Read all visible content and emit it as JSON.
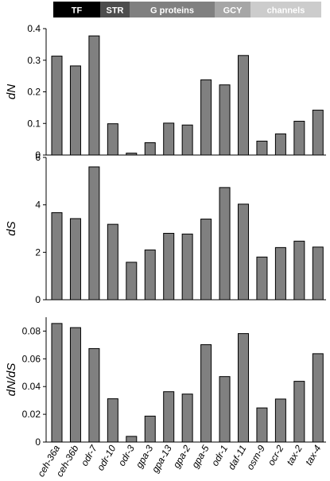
{
  "legend": [
    {
      "label": "TF",
      "color": "#000000"
    },
    {
      "label": "STR",
      "color": "#4d4d4d"
    },
    {
      "label": "G proteins",
      "color": "#808080"
    },
    {
      "label": "GCY",
      "color": "#a6a6a6"
    },
    {
      "label": "channels",
      "color": "#cccccc"
    }
  ],
  "colors": {
    "bar": "#808080",
    "bar_stroke": "#000000",
    "axis": "#000000"
  },
  "chart_data": [
    {
      "type": "bar",
      "ylabel": "dN",
      "ylim": [
        0,
        0.4
      ],
      "yticks": [
        "0",
        "0.1",
        "0.2",
        "0.3",
        "0.4"
      ],
      "ytick_values": [
        0,
        0.1,
        0.2,
        0.3,
        0.4
      ],
      "categories": [
        "ceh-36a",
        "ceh-36b",
        "odr-7",
        "odr-10",
        "odr-3",
        "gpa-3",
        "gpa-13",
        "gpa-2",
        "gpa-5",
        "odr-1",
        "daf-11",
        "osm-9",
        "ocr-2",
        "tax-2",
        "tax-4"
      ],
      "values": [
        0.313,
        0.282,
        0.377,
        0.099,
        0.006,
        0.039,
        0.101,
        0.095,
        0.238,
        0.222,
        0.315,
        0.044,
        0.067,
        0.107,
        0.142
      ]
    },
    {
      "type": "bar",
      "ylabel": "dS",
      "ylim": [
        0,
        6
      ],
      "yticks": [
        "0",
        "2",
        "4",
        "6"
      ],
      "ytick_values": [
        0,
        2,
        4,
        6
      ],
      "categories": [
        "ceh-36a",
        "ceh-36b",
        "odr-7",
        "odr-10",
        "odr-3",
        "gpa-3",
        "gpa-13",
        "gpa-2",
        "gpa-5",
        "odr-1",
        "daf-11",
        "osm-9",
        "ocr-2",
        "tax-2",
        "tax-4"
      ],
      "values": [
        3.67,
        3.42,
        5.6,
        3.18,
        1.58,
        2.1,
        2.8,
        2.77,
        3.4,
        4.73,
        4.03,
        1.8,
        2.2,
        2.47,
        2.22
      ]
    },
    {
      "type": "bar",
      "ylabel": "dN/dS",
      "ylim": [
        0,
        0.09
      ],
      "yticks": [
        "0",
        "0.02",
        "0.04",
        "0.06",
        "0.08"
      ],
      "ytick_values": [
        0,
        0.02,
        0.04,
        0.06,
        0.08
      ],
      "categories": [
        "ceh-36a",
        "ceh-36b",
        "odr-7",
        "odr-10",
        "odr-3",
        "gpa-3",
        "gpa-13",
        "gpa-2",
        "gpa-5",
        "odr-1",
        "daf-11",
        "osm-9",
        "ocr-2",
        "tax-2",
        "tax-4"
      ],
      "values": [
        0.0855,
        0.0825,
        0.0674,
        0.0312,
        0.0041,
        0.0187,
        0.0363,
        0.0346,
        0.0702,
        0.0472,
        0.0782,
        0.0246,
        0.031,
        0.0438,
        0.0637
      ]
    }
  ]
}
